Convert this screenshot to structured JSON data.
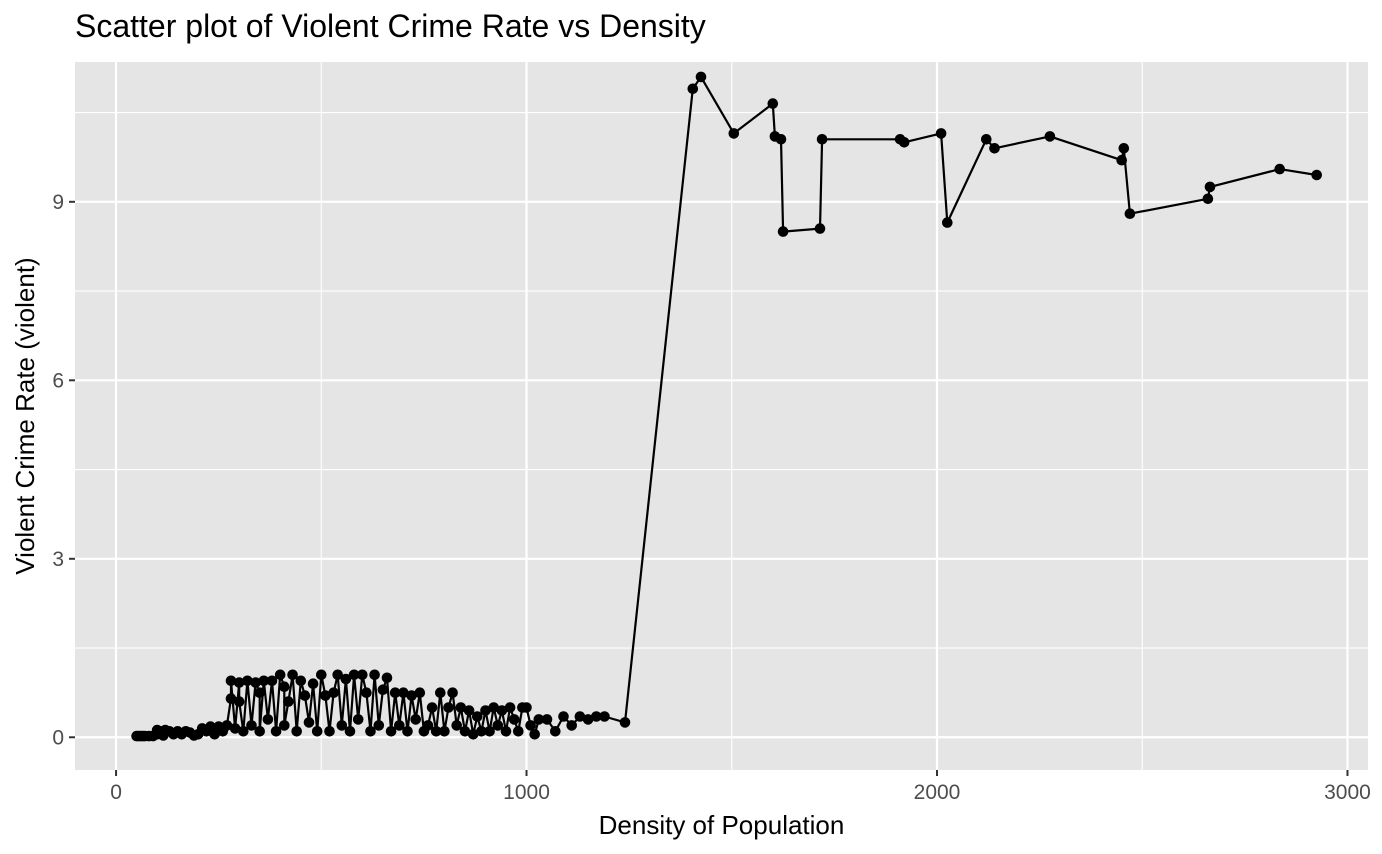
{
  "chart_data": {
    "type": "scatter",
    "title": "Scatter plot of Violent Crime Rate vs Density",
    "xlabel": "Density of Population",
    "ylabel": "Violent Crime Rate (violent)",
    "xlim": [
      -100,
      3050
    ],
    "ylim": [
      -0.55,
      11.35
    ],
    "x_ticks": [
      0,
      1000,
      2000,
      3000
    ],
    "x_tick_labels": [
      "0",
      "1000",
      "2000",
      "3000"
    ],
    "y_ticks": [
      0,
      3,
      6,
      9
    ],
    "y_tick_labels": [
      "0",
      "3",
      "6",
      "9"
    ],
    "grid": true,
    "legend": "none",
    "connected_line": true,
    "colors": {
      "panel_background": "#e5e5e5",
      "grid": "#ffffff",
      "points": "#000000",
      "line": "#000000"
    },
    "series": [
      {
        "x": [
          50,
          55,
          60,
          65,
          70,
          80,
          90,
          100,
          100,
          110,
          115,
          120,
          130,
          140,
          150,
          160,
          170,
          180,
          190,
          200,
          210,
          220,
          230,
          240,
          250,
          260,
          270,
          280,
          280,
          290,
          300,
          300,
          310,
          320,
          330,
          340,
          350,
          350,
          360,
          370,
          380,
          390,
          400,
          410,
          410,
          420,
          430,
          440,
          450,
          460,
          470,
          480,
          490,
          500,
          510,
          520,
          530,
          540,
          550,
          560,
          570,
          580,
          590,
          600,
          610,
          620,
          630,
          640,
          650,
          660,
          670,
          680,
          690,
          700,
          710,
          720,
          730,
          740,
          750,
          760,
          770,
          780,
          790,
          800,
          810,
          820,
          830,
          840,
          850,
          860,
          870,
          880,
          890,
          900,
          910,
          920,
          930,
          940,
          950,
          960,
          970,
          980,
          990,
          1000,
          1010,
          1020,
          1030,
          1050,
          1070,
          1090,
          1110,
          1130,
          1150,
          1170,
          1190,
          1240,
          1405,
          1425,
          1505,
          1600,
          1605,
          1620,
          1625,
          1715,
          1720,
          1910,
          1920,
          2010,
          2025,
          2120,
          2140,
          2275,
          2450,
          2455,
          2470,
          2660,
          2665,
          2835,
          2925
        ],
        "y": [
          0.02,
          0.02,
          0.02,
          0.02,
          0.02,
          0.02,
          0.02,
          0.05,
          0.12,
          0.1,
          0.03,
          0.12,
          0.1,
          0.05,
          0.1,
          0.05,
          0.1,
          0.08,
          0.03,
          0.05,
          0.15,
          0.1,
          0.18,
          0.05,
          0.18,
          0.1,
          0.2,
          0.65,
          0.95,
          0.15,
          0.92,
          0.6,
          0.1,
          0.95,
          0.2,
          0.92,
          0.75,
          0.1,
          0.95,
          0.3,
          0.95,
          0.1,
          1.05,
          0.85,
          0.2,
          0.6,
          1.05,
          0.1,
          0.95,
          0.7,
          0.25,
          0.9,
          0.1,
          1.05,
          0.7,
          0.1,
          0.75,
          1.05,
          0.2,
          0.98,
          0.1,
          1.05,
          0.3,
          1.05,
          0.75,
          0.1,
          1.05,
          0.2,
          0.8,
          1.0,
          0.1,
          0.75,
          0.2,
          0.75,
          0.1,
          0.7,
          0.3,
          0.75,
          0.1,
          0.2,
          0.5,
          0.1,
          0.75,
          0.1,
          0.5,
          0.75,
          0.2,
          0.5,
          0.1,
          0.45,
          0.05,
          0.35,
          0.1,
          0.45,
          0.1,
          0.5,
          0.2,
          0.45,
          0.1,
          0.5,
          0.3,
          0.1,
          0.5,
          0.5,
          0.2,
          0.05,
          0.3,
          0.3,
          0.1,
          0.35,
          0.2,
          0.35,
          0.3,
          0.35,
          0.35,
          0.25,
          10.9,
          11.1,
          10.15,
          10.65,
          10.1,
          10.05,
          8.5,
          8.55,
          10.05,
          10.05,
          10.0,
          10.15,
          8.65,
          10.05,
          9.9,
          10.1,
          9.7,
          9.9,
          8.8,
          9.05,
          9.25,
          9.55,
          9.45
        ]
      }
    ]
  }
}
